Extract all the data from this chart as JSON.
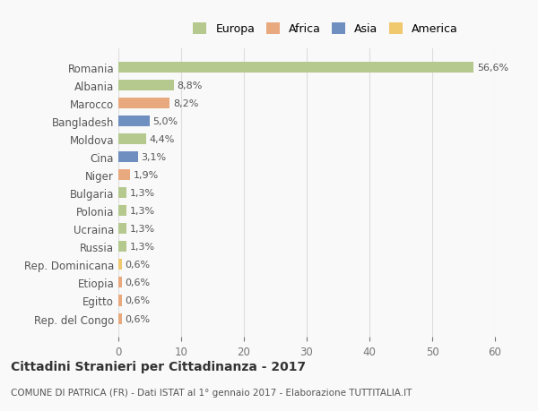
{
  "categories": [
    "Romania",
    "Albania",
    "Marocco",
    "Bangladesh",
    "Moldova",
    "Cina",
    "Niger",
    "Bulgaria",
    "Polonia",
    "Ucraina",
    "Russia",
    "Rep. Dominicana",
    "Etiopia",
    "Egitto",
    "Rep. del Congo"
  ],
  "values": [
    56.6,
    8.8,
    8.2,
    5.0,
    4.4,
    3.1,
    1.9,
    1.3,
    1.3,
    1.3,
    1.3,
    0.6,
    0.6,
    0.6,
    0.6
  ],
  "labels": [
    "56,6%",
    "8,8%",
    "8,2%",
    "5,0%",
    "4,4%",
    "3,1%",
    "1,9%",
    "1,3%",
    "1,3%",
    "1,3%",
    "1,3%",
    "0,6%",
    "0,6%",
    "0,6%",
    "0,6%"
  ],
  "colors": [
    "#b5c98e",
    "#b5c98e",
    "#e8a97e",
    "#6f8fc0",
    "#b5c98e",
    "#6f8fc0",
    "#e8a97e",
    "#b5c98e",
    "#b5c98e",
    "#b5c98e",
    "#b5c98e",
    "#f0c96e",
    "#e8a97e",
    "#e8a97e",
    "#e8a97e"
  ],
  "legend": [
    {
      "label": "Europa",
      "color": "#b5c98e"
    },
    {
      "label": "Africa",
      "color": "#e8a97e"
    },
    {
      "label": "Asia",
      "color": "#6f8fc0"
    },
    {
      "label": "America",
      "color": "#f0c96e"
    }
  ],
  "title_bold": "Cittadini Stranieri per Cittadinanza - 2017",
  "subtitle": "COMUNE DI PATRICA (FR) - Dati ISTAT al 1° gennaio 2017 - Elaborazione TUTTITALIA.IT",
  "xlim": [
    0,
    60
  ],
  "xticks": [
    0,
    10,
    20,
    30,
    40,
    50,
    60
  ],
  "bg_color": "#f9f9f9",
  "grid_color": "#dddddd"
}
